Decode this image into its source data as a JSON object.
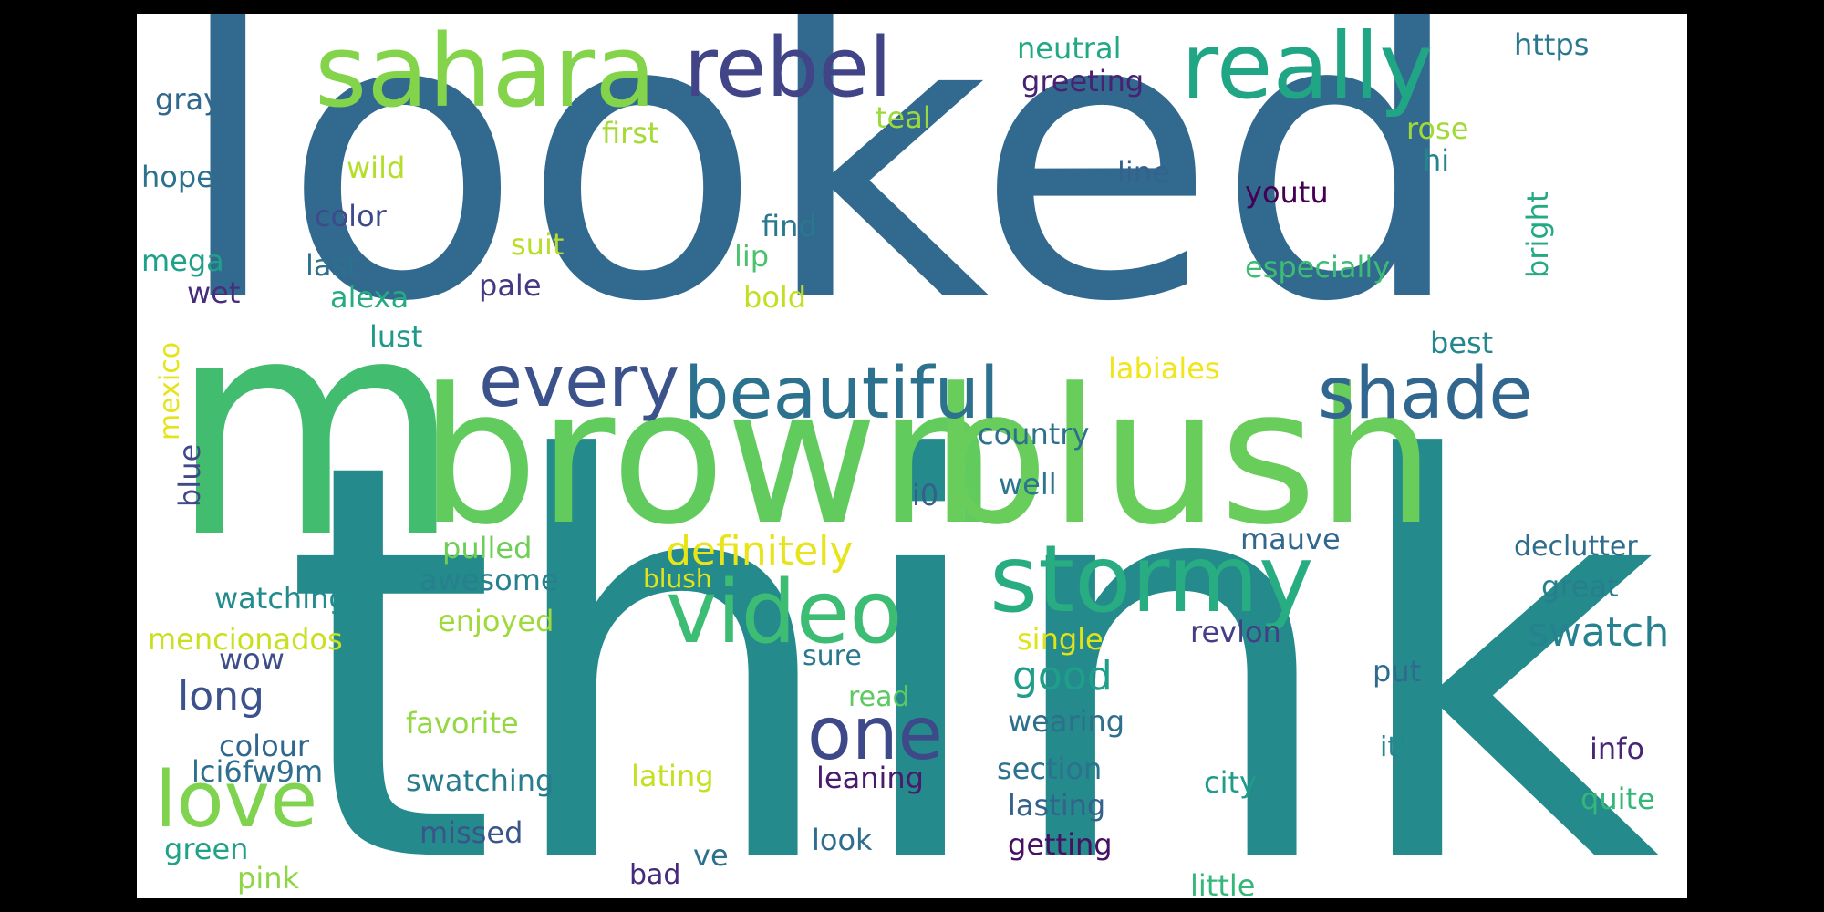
{
  "words": [
    {
      "text": "looked",
      "color": "#32698f"
    },
    {
      "text": "think",
      "color": "#248a8b"
    },
    {
      "text": "m",
      "color": "#42bc6f"
    },
    {
      "text": "brown",
      "color": "#62cb5e"
    },
    {
      "text": "blush",
      "color": "#69cd5b"
    },
    {
      "text": "sahara",
      "color": "#84d44b"
    },
    {
      "text": "rebel",
      "color": "#414487"
    },
    {
      "text": "really",
      "color": "#21a685"
    },
    {
      "text": "every",
      "color": "#3b528b"
    },
    {
      "text": "beautiful",
      "color": "#2c718e"
    },
    {
      "text": "shade",
      "color": "#31668e"
    },
    {
      "text": "stormy",
      "color": "#27ad81"
    },
    {
      "text": "video",
      "color": "#3dbc74"
    },
    {
      "text": "one",
      "color": "#3e4989"
    },
    {
      "text": "love",
      "color": "#7fd34e"
    },
    {
      "text": "definitely",
      "color": "#e7e419"
    },
    {
      "text": "swatch",
      "color": "#26828e"
    },
    {
      "text": "good",
      "color": "#1f9e89"
    },
    {
      "text": "long",
      "color": "#3b528b"
    },
    {
      "text": "gray",
      "color": "#31688e"
    },
    {
      "text": "hope",
      "color": "#2c728e"
    },
    {
      "text": "color",
      "color": "#3e4a89"
    },
    {
      "text": "first",
      "color": "#a5db36"
    },
    {
      "text": "wild",
      "color": "#b5de2b"
    },
    {
      "text": "mega",
      "color": "#1fa088"
    },
    {
      "text": "last",
      "color": "#2d708e"
    },
    {
      "text": "wet",
      "color": "#472d7b"
    },
    {
      "text": "alexa",
      "color": "#25ab82"
    },
    {
      "text": "lust",
      "color": "#1f9a8a"
    },
    {
      "text": "suit",
      "color": "#b8de29"
    },
    {
      "text": "pale",
      "color": "#443983"
    },
    {
      "text": "find",
      "color": "#2a788e"
    },
    {
      "text": "lip",
      "color": "#4ac16d"
    },
    {
      "text": "bold",
      "color": "#c2df23"
    },
    {
      "text": "teal",
      "color": "#9bd93c"
    },
    {
      "text": "neutral",
      "color": "#22a884"
    },
    {
      "text": "greeting",
      "color": "#482173"
    },
    {
      "text": "https",
      "color": "#2a788e"
    },
    {
      "text": "rose",
      "color": "#a0da39"
    },
    {
      "text": "hi",
      "color": "#25848e"
    },
    {
      "text": "line",
      "color": "#33638d"
    },
    {
      "text": "youtu",
      "color": "#440154"
    },
    {
      "text": "especially",
      "color": "#3dbc74"
    },
    {
      "text": "bright",
      "color": "#23a983"
    },
    {
      "text": "best",
      "color": "#23888e"
    },
    {
      "text": "labiales",
      "color": "#f1e51d"
    },
    {
      "text": "country",
      "color": "#2d708e"
    },
    {
      "text": "well",
      "color": "#2b758e"
    },
    {
      "text": "i0",
      "color": "#355f8d"
    },
    {
      "text": "mexico",
      "color": "#e5e419"
    },
    {
      "text": "blue",
      "color": "#3f4889"
    },
    {
      "text": "pulled",
      "color": "#6ece58"
    },
    {
      "text": "awesome",
      "color": "#27808e"
    },
    {
      "text": "watching",
      "color": "#228c8d"
    },
    {
      "text": "blush",
      "color": "#e2e418"
    },
    {
      "text": "enjoyed",
      "color": "#9fda3a"
    },
    {
      "text": "mencionados",
      "color": "#c8e020"
    },
    {
      "text": "wow",
      "color": "#3d4e8a"
    },
    {
      "text": "mauve",
      "color": "#31688e"
    },
    {
      "text": "declutter",
      "color": "#2f6c8e"
    },
    {
      "text": "great",
      "color": "#277f8e"
    },
    {
      "text": "single",
      "color": "#e0e318"
    },
    {
      "text": "revlon",
      "color": "#433e85"
    },
    {
      "text": "sure",
      "color": "#2a788e"
    },
    {
      "text": "read",
      "color": "#5ec962"
    },
    {
      "text": "favorite",
      "color": "#93d741"
    },
    {
      "text": "colour",
      "color": "#31678e"
    },
    {
      "text": "lci6fw9m",
      "color": "#2e6e8e"
    },
    {
      "text": "swatching",
      "color": "#287c8e"
    },
    {
      "text": "lating",
      "color": "#c5e021"
    },
    {
      "text": "leaning",
      "color": "#481b6d"
    },
    {
      "text": "section",
      "color": "#2c728e"
    },
    {
      "text": "wearing",
      "color": "#2e6f8e"
    },
    {
      "text": "put",
      "color": "#2f6b8e"
    },
    {
      "text": "it'",
      "color": "#24868e"
    },
    {
      "text": "info",
      "color": "#482576"
    },
    {
      "text": "city",
      "color": "#1e9b8a"
    },
    {
      "text": "quite",
      "color": "#35b779"
    },
    {
      "text": "lasting",
      "color": "#33628d"
    },
    {
      "text": "getting",
      "color": "#471063"
    },
    {
      "text": "green",
      "color": "#1fa287"
    },
    {
      "text": "pink",
      "color": "#8ed645"
    },
    {
      "text": "missed",
      "color": "#3a548c"
    },
    {
      "text": "ve",
      "color": "#2d708e"
    },
    {
      "text": "bad",
      "color": "#472a7a"
    },
    {
      "text": "look",
      "color": "#2f6c8e"
    },
    {
      "text": "little",
      "color": "#35b779"
    }
  ]
}
